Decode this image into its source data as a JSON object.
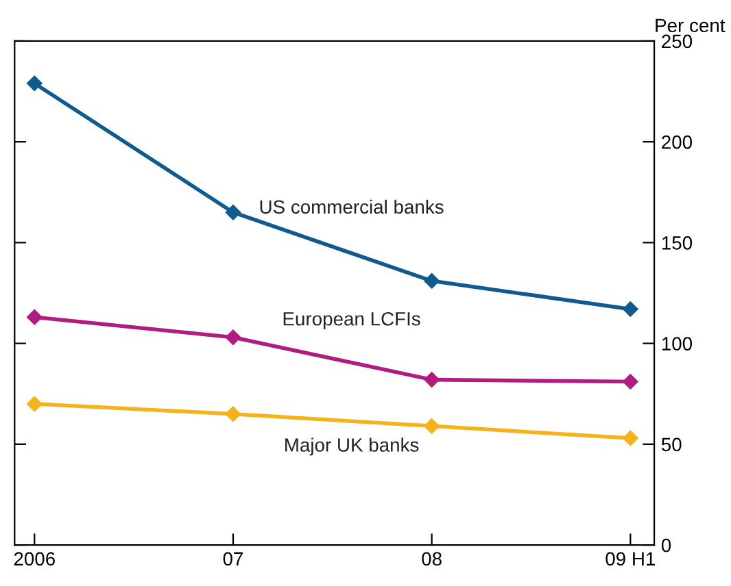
{
  "chart_data": {
    "type": "line",
    "ylabel": "Per cent",
    "categories": [
      "2006",
      "07",
      "08",
      "09 H1"
    ],
    "series": [
      {
        "name": "US commercial banks",
        "color": "#0f5a8f",
        "values": [
          229,
          165,
          131,
          117
        ]
      },
      {
        "name": "European LCFIs",
        "color": "#b01c80",
        "values": [
          113,
          103,
          82,
          81
        ]
      },
      {
        "name": "Major UK banks",
        "color": "#f6b21a",
        "values": [
          70,
          65,
          59,
          53
        ]
      }
    ],
    "ylim": [
      0,
      250
    ],
    "yticks": [
      0,
      50,
      100,
      150,
      200,
      250
    ],
    "marker": "diamond",
    "line_style": "solid",
    "grid": false,
    "legend": false
  }
}
